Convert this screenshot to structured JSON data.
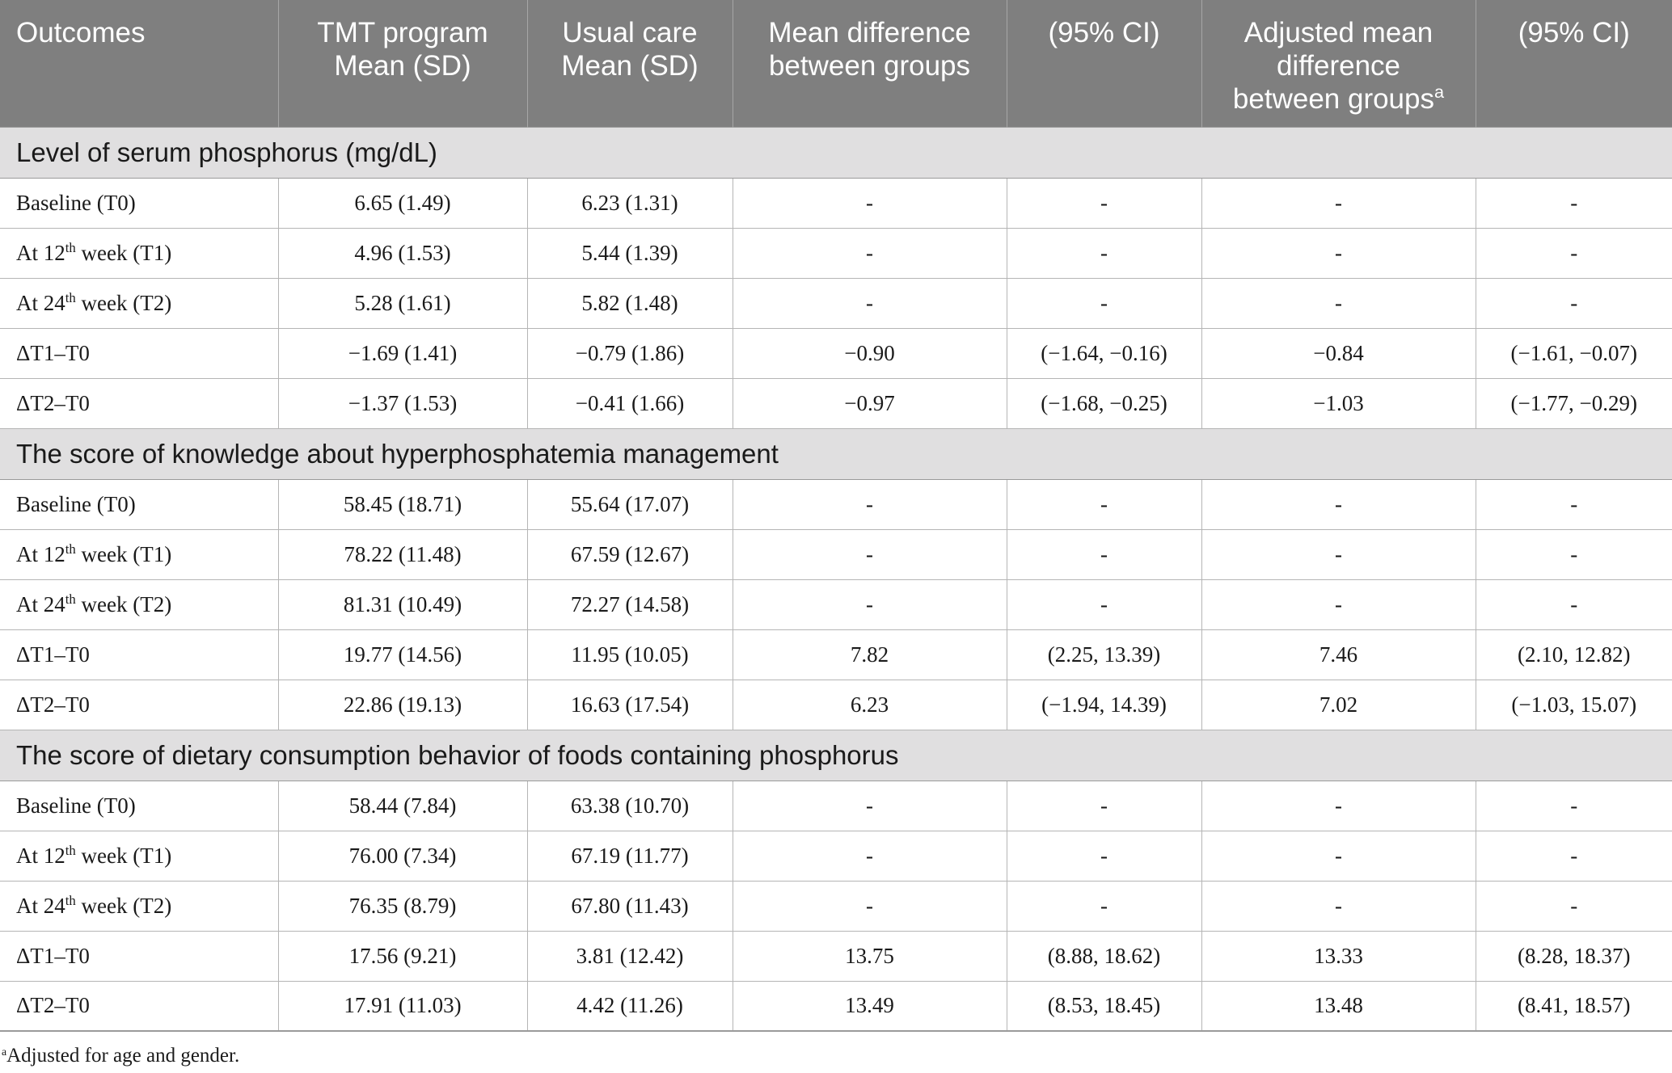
{
  "table": {
    "headers": [
      {
        "l1": "Outcomes"
      },
      {
        "l1": "TMT program",
        "l2": "Mean (SD)"
      },
      {
        "l1": "Usual care",
        "l2": "Mean (SD)"
      },
      {
        "l1": "Mean difference",
        "l2": "between groups"
      },
      {
        "l1": "(95% CI)"
      },
      {
        "l1": "Adjusted mean",
        "l2": "difference",
        "l3": "between groups",
        "l3_sup": "a"
      },
      {
        "l1": "(95% CI)"
      }
    ],
    "sections": [
      {
        "title": "Level of serum phosphorus (mg/dL)",
        "rows": [
          {
            "label": "Baseline (T0)",
            "cells": [
              "6.65 (1.49)",
              "6.23 (1.31)",
              "-",
              "-",
              "-",
              "-"
            ]
          },
          {
            "label_pre": "At 12",
            "label_sup": "th",
            "label_post": " week (T1)",
            "cells": [
              "4.96 (1.53)",
              "5.44 (1.39)",
              "-",
              "-",
              "-",
              "-"
            ]
          },
          {
            "label_pre": "At 24",
            "label_sup": "th",
            "label_post": " week (T2)",
            "cells": [
              "5.28 (1.61)",
              "5.82 (1.48)",
              "-",
              "-",
              "-",
              "-"
            ]
          },
          {
            "label": "ΔT1–T0",
            "cells": [
              "−1.69 (1.41)",
              "−0.79 (1.86)",
              "−0.90",
              "(−1.64, −0.16)",
              "−0.84",
              "(−1.61, −0.07)"
            ]
          },
          {
            "label": "ΔT2–T0",
            "cells": [
              "−1.37 (1.53)",
              "−0.41 (1.66)",
              "−0.97",
              "(−1.68, −0.25)",
              "−1.03",
              "(−1.77, −0.29)"
            ]
          }
        ]
      },
      {
        "title": "The score of knowledge about hyperphosphatemia management",
        "rows": [
          {
            "label": "Baseline (T0)",
            "cells": [
              "58.45 (18.71)",
              "55.64 (17.07)",
              "-",
              "-",
              "-",
              "-"
            ]
          },
          {
            "label_pre": "At 12",
            "label_sup": "th",
            "label_post": " week (T1)",
            "cells": [
              "78.22 (11.48)",
              "67.59 (12.67)",
              "-",
              "-",
              "-",
              "-"
            ]
          },
          {
            "label_pre": "At 24",
            "label_sup": "th",
            "label_post": " week (T2)",
            "cells": [
              "81.31 (10.49)",
              "72.27 (14.58)",
              "-",
              "-",
              "-",
              "-"
            ]
          },
          {
            "label": "ΔT1–T0",
            "cells": [
              "19.77 (14.56)",
              "11.95 (10.05)",
              "7.82",
              "(2.25, 13.39)",
              "7.46",
              "(2.10, 12.82)"
            ]
          },
          {
            "label": "ΔT2–T0",
            "cells": [
              "22.86 (19.13)",
              "16.63 (17.54)",
              "6.23",
              "(−1.94, 14.39)",
              "7.02",
              "(−1.03, 15.07)"
            ]
          }
        ]
      },
      {
        "title": "The score of dietary consumption behavior of foods containing phosphorus",
        "rows": [
          {
            "label": "Baseline (T0)",
            "cells": [
              "58.44 (7.84)",
              "63.38 (10.70)",
              "-",
              "-",
              "-",
              "-"
            ]
          },
          {
            "label_pre": "At 12",
            "label_sup": "th",
            "label_post": " week (T1)",
            "cells": [
              "76.00 (7.34)",
              "67.19 (11.77)",
              "-",
              "-",
              "-",
              "-"
            ]
          },
          {
            "label_pre": "At 24",
            "label_sup": "th",
            "label_post": " week (T2)",
            "cells": [
              "76.35 (8.79)",
              "67.80 (11.43)",
              "-",
              "-",
              "-",
              "-"
            ]
          },
          {
            "label": "ΔT1–T0",
            "cells": [
              "17.56 (9.21)",
              "3.81 (12.42)",
              "13.75",
              "(8.88, 18.62)",
              "13.33",
              "(8.28, 18.37)"
            ]
          },
          {
            "label": "ΔT2–T0",
            "cells": [
              "17.91 (11.03)",
              "4.42 (11.26)",
              "13.49",
              "(8.53, 18.45)",
              "13.48",
              "(8.41, 18.57)"
            ]
          }
        ]
      }
    ]
  },
  "footnote": {
    "mark": "a",
    "text": "Adjusted for age and gender."
  }
}
